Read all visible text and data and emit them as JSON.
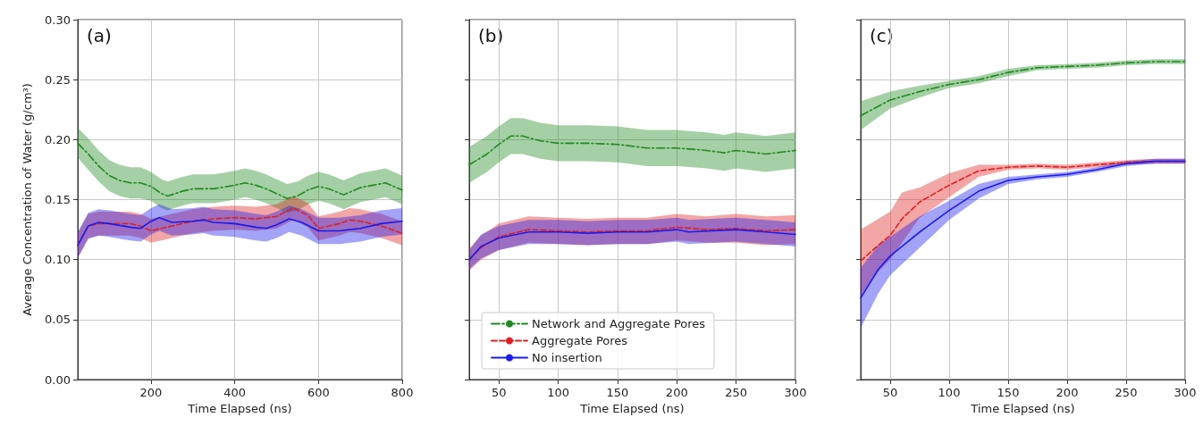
{
  "chart_data": [
    {
      "type": "line",
      "annotations": [
        "(a)"
      ],
      "xlabel": "Time Elapsed (ns)",
      "ylabel": "Average Concentration of Water (g/cm³)",
      "xlim": [
        25,
        800
      ],
      "xticks": [
        200,
        400,
        600,
        800
      ],
      "ylim": [
        0,
        0.3
      ],
      "yticks": [
        {
          "value": 0,
          "label": "0.00"
        },
        {
          "value": 0.05,
          "label": "0.05"
        },
        {
          "value": 0.1,
          "label": "0.10"
        },
        {
          "value": 0.15,
          "label": "0.15"
        },
        {
          "value": 0.2,
          "label": "0.20"
        },
        {
          "value": 0.25,
          "label": "0.25"
        },
        {
          "value": 0.3,
          "label": "0.30"
        }
      ],
      "grid": true,
      "legend": false,
      "marker": "none",
      "series": [
        {
          "color": "#1f8a1f",
          "line_style": "dashdot",
          "x": [
            25,
            50,
            75,
            100,
            125,
            150,
            175,
            200,
            225,
            240,
            275,
            300,
            350,
            400,
            425,
            450,
            475,
            500,
            525,
            550,
            575,
            600,
            625,
            660,
            700,
            730,
            760,
            800
          ],
          "values": [
            0.197,
            0.188,
            0.178,
            0.17,
            0.166,
            0.164,
            0.164,
            0.161,
            0.155,
            0.153,
            0.157,
            0.159,
            0.159,
            0.162,
            0.164,
            0.162,
            0.159,
            0.155,
            0.151,
            0.153,
            0.158,
            0.161,
            0.159,
            0.154,
            0.16,
            0.162,
            0.164,
            0.158
          ],
          "lower": [
            0.185,
            0.175,
            0.165,
            0.157,
            0.153,
            0.151,
            0.151,
            0.149,
            0.143,
            0.141,
            0.145,
            0.147,
            0.147,
            0.15,
            0.152,
            0.15,
            0.147,
            0.143,
            0.139,
            0.141,
            0.146,
            0.149,
            0.147,
            0.142,
            0.148,
            0.15,
            0.152,
            0.146
          ],
          "upper": [
            0.21,
            0.201,
            0.191,
            0.183,
            0.179,
            0.177,
            0.177,
            0.173,
            0.167,
            0.165,
            0.169,
            0.171,
            0.171,
            0.174,
            0.176,
            0.174,
            0.171,
            0.167,
            0.163,
            0.165,
            0.17,
            0.173,
            0.171,
            0.166,
            0.172,
            0.174,
            0.176,
            0.17
          ]
        },
        {
          "color": "#e02020",
          "line_style": "dashed",
          "x": [
            25,
            50,
            75,
            100,
            150,
            175,
            200,
            225,
            250,
            300,
            350,
            400,
            450,
            500,
            540,
            575,
            600,
            650,
            675,
            700,
            750,
            800
          ],
          "values": [
            0.112,
            0.128,
            0.13,
            0.13,
            0.13,
            0.128,
            0.124,
            0.126,
            0.128,
            0.132,
            0.134,
            0.135,
            0.134,
            0.136,
            0.143,
            0.137,
            0.126,
            0.13,
            0.133,
            0.132,
            0.128,
            0.122
          ],
          "lower": [
            0.102,
            0.118,
            0.12,
            0.12,
            0.12,
            0.118,
            0.114,
            0.116,
            0.118,
            0.122,
            0.124,
            0.125,
            0.124,
            0.126,
            0.133,
            0.127,
            0.116,
            0.12,
            0.123,
            0.122,
            0.118,
            0.112
          ],
          "upper": [
            0.122,
            0.138,
            0.14,
            0.14,
            0.14,
            0.138,
            0.134,
            0.136,
            0.138,
            0.142,
            0.144,
            0.145,
            0.144,
            0.146,
            0.153,
            0.147,
            0.136,
            0.14,
            0.143,
            0.142,
            0.138,
            0.132
          ]
        },
        {
          "color": "#1a1aee",
          "line_style": "solid",
          "x": [
            25,
            50,
            75,
            100,
            150,
            175,
            200,
            220,
            250,
            300,
            325,
            350,
            400,
            450,
            475,
            500,
            530,
            560,
            600,
            650,
            700,
            750,
            800
          ],
          "values": [
            0.112,
            0.128,
            0.131,
            0.13,
            0.127,
            0.126,
            0.132,
            0.135,
            0.131,
            0.132,
            0.133,
            0.131,
            0.13,
            0.127,
            0.126,
            0.129,
            0.134,
            0.131,
            0.124,
            0.124,
            0.126,
            0.13,
            0.132
          ],
          "lower": [
            0.101,
            0.117,
            0.12,
            0.119,
            0.116,
            0.115,
            0.121,
            0.124,
            0.12,
            0.121,
            0.122,
            0.12,
            0.119,
            0.116,
            0.115,
            0.118,
            0.123,
            0.12,
            0.113,
            0.113,
            0.115,
            0.119,
            0.121
          ],
          "upper": [
            0.123,
            0.139,
            0.142,
            0.141,
            0.138,
            0.137,
            0.143,
            0.146,
            0.142,
            0.143,
            0.144,
            0.142,
            0.141,
            0.138,
            0.137,
            0.14,
            0.145,
            0.142,
            0.135,
            0.135,
            0.137,
            0.141,
            0.143
          ]
        }
      ]
    },
    {
      "type": "line",
      "annotations": [
        "(b)"
      ],
      "xlabel": "Time Elapsed (ns)",
      "xlim": [
        25,
        300
      ],
      "xticks": [
        50,
        100,
        150,
        200,
        250,
        300
      ],
      "ylim": [
        0,
        0.3
      ],
      "yticks": [
        0,
        0.05,
        0.1,
        0.15,
        0.2,
        0.25,
        0.3
      ],
      "tick_labels": "x",
      "grid": true,
      "legend": "bottom",
      "marker": "none",
      "series": [
        {
          "name": "Network and Aggregate Pores",
          "color": "#1f8a1f",
          "line_style": "dashdot",
          "x": [
            25,
            40,
            50,
            60,
            70,
            85,
            100,
            125,
            150,
            175,
            200,
            225,
            240,
            250,
            275,
            300
          ],
          "values": [
            0.179,
            0.188,
            0.196,
            0.203,
            0.203,
            0.199,
            0.197,
            0.197,
            0.196,
            0.193,
            0.193,
            0.191,
            0.189,
            0.191,
            0.188,
            0.191
          ],
          "lower": [
            0.164,
            0.173,
            0.181,
            0.188,
            0.188,
            0.184,
            0.182,
            0.182,
            0.181,
            0.178,
            0.178,
            0.176,
            0.174,
            0.176,
            0.173,
            0.176
          ],
          "upper": [
            0.194,
            0.203,
            0.211,
            0.218,
            0.218,
            0.214,
            0.212,
            0.212,
            0.211,
            0.208,
            0.208,
            0.206,
            0.204,
            0.206,
            0.203,
            0.206
          ]
        },
        {
          "name": "Aggregate Pores",
          "color": "#e02020",
          "line_style": "dashed",
          "x": [
            25,
            35,
            50,
            75,
            100,
            125,
            150,
            175,
            200,
            225,
            250,
            275,
            300
          ],
          "values": [
            0.1,
            0.11,
            0.119,
            0.125,
            0.124,
            0.123,
            0.124,
            0.124,
            0.127,
            0.125,
            0.126,
            0.124,
            0.125
          ],
          "lower": [
            0.091,
            0.1,
            0.108,
            0.114,
            0.113,
            0.112,
            0.113,
            0.113,
            0.116,
            0.114,
            0.114,
            0.112,
            0.113
          ],
          "upper": [
            0.109,
            0.12,
            0.13,
            0.136,
            0.135,
            0.134,
            0.135,
            0.135,
            0.138,
            0.136,
            0.138,
            0.136,
            0.137
          ]
        },
        {
          "name": "No insertion",
          "color": "#1a1aee",
          "line_style": "solid",
          "x": [
            25,
            35,
            50,
            75,
            100,
            125,
            150,
            175,
            200,
            210,
            250,
            275,
            300
          ],
          "values": [
            0.1,
            0.111,
            0.118,
            0.123,
            0.123,
            0.122,
            0.123,
            0.123,
            0.125,
            0.123,
            0.125,
            0.123,
            0.121
          ],
          "lower": [
            0.092,
            0.101,
            0.108,
            0.113,
            0.113,
            0.112,
            0.113,
            0.113,
            0.115,
            0.113,
            0.115,
            0.113,
            0.111
          ],
          "upper": [
            0.108,
            0.121,
            0.128,
            0.133,
            0.133,
            0.132,
            0.133,
            0.133,
            0.135,
            0.133,
            0.135,
            0.133,
            0.131
          ]
        }
      ]
    },
    {
      "type": "line",
      "annotations": [
        "(c)"
      ],
      "xlabel": "Time Elapsed (ns)",
      "xlim": [
        25,
        300
      ],
      "xticks": [
        50,
        100,
        150,
        200,
        250,
        300
      ],
      "ylim": [
        0,
        0.3
      ],
      "yticks": [
        0,
        0.05,
        0.1,
        0.15,
        0.2,
        0.25,
        0.3
      ],
      "tick_labels": "x",
      "grid": true,
      "legend": false,
      "marker": "none",
      "series": [
        {
          "color": "#1f8a1f",
          "line_style": "dashdot",
          "x": [
            25,
            50,
            75,
            100,
            125,
            150,
            175,
            200,
            225,
            250,
            275,
            300
          ],
          "values": [
            0.22,
            0.233,
            0.24,
            0.246,
            0.25,
            0.256,
            0.26,
            0.261,
            0.262,
            0.264,
            0.265,
            0.265
          ],
          "lower": [
            0.208,
            0.226,
            0.235,
            0.243,
            0.247,
            0.253,
            0.258,
            0.259,
            0.26,
            0.262,
            0.263,
            0.263
          ],
          "upper": [
            0.232,
            0.24,
            0.245,
            0.249,
            0.253,
            0.259,
            0.262,
            0.263,
            0.264,
            0.266,
            0.267,
            0.267
          ]
        },
        {
          "color": "#e02020",
          "line_style": "dashed",
          "x": [
            25,
            40,
            50,
            60,
            75,
            100,
            125,
            150,
            175,
            200,
            225,
            250,
            275,
            300
          ],
          "values": [
            0.099,
            0.112,
            0.12,
            0.134,
            0.148,
            0.162,
            0.174,
            0.177,
            0.178,
            0.177,
            0.179,
            0.181,
            0.182,
            0.182
          ],
          "lower": [
            0.07,
            0.09,
            0.1,
            0.114,
            0.135,
            0.152,
            0.169,
            0.175,
            0.176,
            0.175,
            0.177,
            0.179,
            0.18,
            0.18
          ],
          "upper": [
            0.125,
            0.134,
            0.14,
            0.156,
            0.16,
            0.172,
            0.179,
            0.179,
            0.18,
            0.179,
            0.181,
            0.183,
            0.184,
            0.184
          ]
        },
        {
          "color": "#1a1aee",
          "line_style": "solid",
          "x": [
            25,
            40,
            50,
            75,
            100,
            125,
            150,
            175,
            200,
            225,
            250,
            275,
            300
          ],
          "values": [
            0.068,
            0.092,
            0.103,
            0.123,
            0.141,
            0.157,
            0.166,
            0.169,
            0.171,
            0.175,
            0.18,
            0.182,
            0.182
          ],
          "lower": [
            0.043,
            0.072,
            0.087,
            0.11,
            0.133,
            0.151,
            0.163,
            0.167,
            0.169,
            0.173,
            0.178,
            0.18,
            0.18
          ],
          "upper": [
            0.093,
            0.112,
            0.119,
            0.136,
            0.149,
            0.163,
            0.169,
            0.171,
            0.173,
            0.177,
            0.182,
            0.184,
            0.184
          ]
        }
      ]
    }
  ]
}
